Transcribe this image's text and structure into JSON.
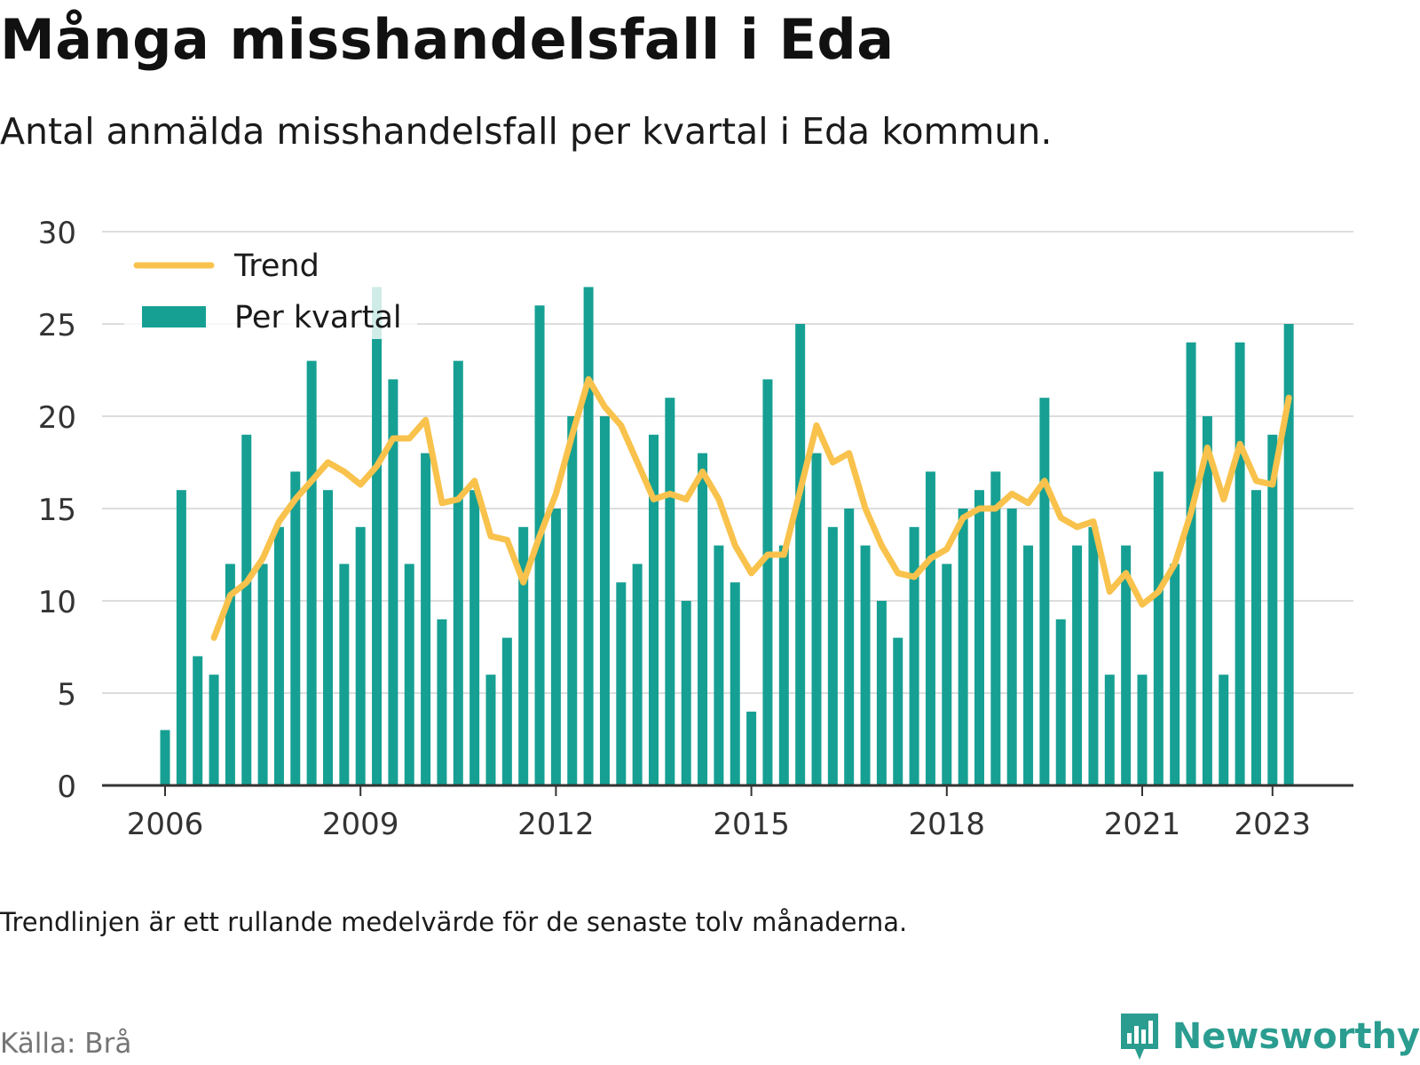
{
  "title": "Många misshandelsfall i Eda",
  "subtitle": "Antal anmälda misshandelsfall per kvartal i Eda kommun.",
  "note": "Trendlinjen är ett rullande medelvärde för de senaste tolv månaderna.",
  "source": "Källa: Brå",
  "logo_text": "Newsworthy",
  "colors": {
    "bars": "#16a093",
    "trend": "#f8c24c",
    "grid": "#dddddd",
    "axis": "#333333",
    "logo": "#2a9d90"
  },
  "chart_data": {
    "type": "bar",
    "ylim": [
      0,
      30
    ],
    "yticks": [
      0,
      5,
      10,
      15,
      20,
      25,
      30
    ],
    "xticks": [
      "2006",
      "2009",
      "2012",
      "2015",
      "2018",
      "2021",
      "2023"
    ],
    "grid": true,
    "legend_position": "top-left",
    "categories": [
      "2006 Q1",
      "2006 Q2",
      "2006 Q3",
      "2006 Q4",
      "2007 Q1",
      "2007 Q2",
      "2007 Q3",
      "2007 Q4",
      "2008 Q1",
      "2008 Q2",
      "2008 Q3",
      "2008 Q4",
      "2009 Q1",
      "2009 Q2",
      "2009 Q3",
      "2009 Q4",
      "2010 Q1",
      "2010 Q2",
      "2010 Q3",
      "2010 Q4",
      "2011 Q1",
      "2011 Q2",
      "2011 Q3",
      "2011 Q4",
      "2012 Q1",
      "2012 Q2",
      "2012 Q3",
      "2012 Q4",
      "2013 Q1",
      "2013 Q2",
      "2013 Q3",
      "2013 Q4",
      "2014 Q1",
      "2014 Q2",
      "2014 Q3",
      "2014 Q4",
      "2015 Q1",
      "2015 Q2",
      "2015 Q3",
      "2015 Q4",
      "2016 Q1",
      "2016 Q2",
      "2016 Q3",
      "2016 Q4",
      "2017 Q1",
      "2017 Q2",
      "2017 Q3",
      "2017 Q4",
      "2018 Q1",
      "2018 Q2",
      "2018 Q3",
      "2018 Q4",
      "2019 Q1",
      "2019 Q2",
      "2019 Q3",
      "2019 Q4",
      "2020 Q1",
      "2020 Q2",
      "2020 Q3",
      "2020 Q4",
      "2021 Q1",
      "2021 Q2",
      "2021 Q3",
      "2021 Q4",
      "2022 Q1",
      "2022 Q2",
      "2022 Q3",
      "2022 Q4",
      "2023 Q1",
      "2023 Q2"
    ],
    "series": [
      {
        "name": "Per kvartal",
        "values": [
          3,
          16,
          7,
          6,
          12,
          19,
          12,
          14,
          17,
          23,
          16,
          12,
          14,
          27,
          22,
          12,
          18,
          9,
          23,
          16,
          6,
          8,
          14,
          26,
          15,
          20,
          27,
          20,
          11,
          12,
          19,
          21,
          10,
          18,
          13,
          11,
          4,
          22,
          13,
          25,
          18,
          14,
          15,
          13,
          10,
          8,
          14,
          17,
          12,
          15,
          16,
          17,
          15,
          13,
          21,
          9,
          13,
          14,
          6,
          13,
          6,
          17,
          12,
          24,
          20,
          6,
          24,
          16,
          19,
          25
        ]
      },
      {
        "name": "Trend",
        "values": [
          null,
          null,
          null,
          8.0,
          10.3,
          11.0,
          12.3,
          14.3,
          15.5,
          16.5,
          17.5,
          17.0,
          16.3,
          17.3,
          18.8,
          18.8,
          19.8,
          15.3,
          15.5,
          16.5,
          13.5,
          13.3,
          11.0,
          13.5,
          15.8,
          19.0,
          22.0,
          20.5,
          19.5,
          17.5,
          15.5,
          15.8,
          15.5,
          17.0,
          15.5,
          13.0,
          11.5,
          12.5,
          12.5,
          16.0,
          19.5,
          17.5,
          18.0,
          15.0,
          13.0,
          11.5,
          11.3,
          12.3,
          12.8,
          14.5,
          15.0,
          15.0,
          15.8,
          15.3,
          16.5,
          14.5,
          14.0,
          14.3,
          10.5,
          11.5,
          9.8,
          10.5,
          12.0,
          14.8,
          18.3,
          15.5,
          18.5,
          16.5,
          16.3,
          21.0
        ]
      }
    ]
  }
}
